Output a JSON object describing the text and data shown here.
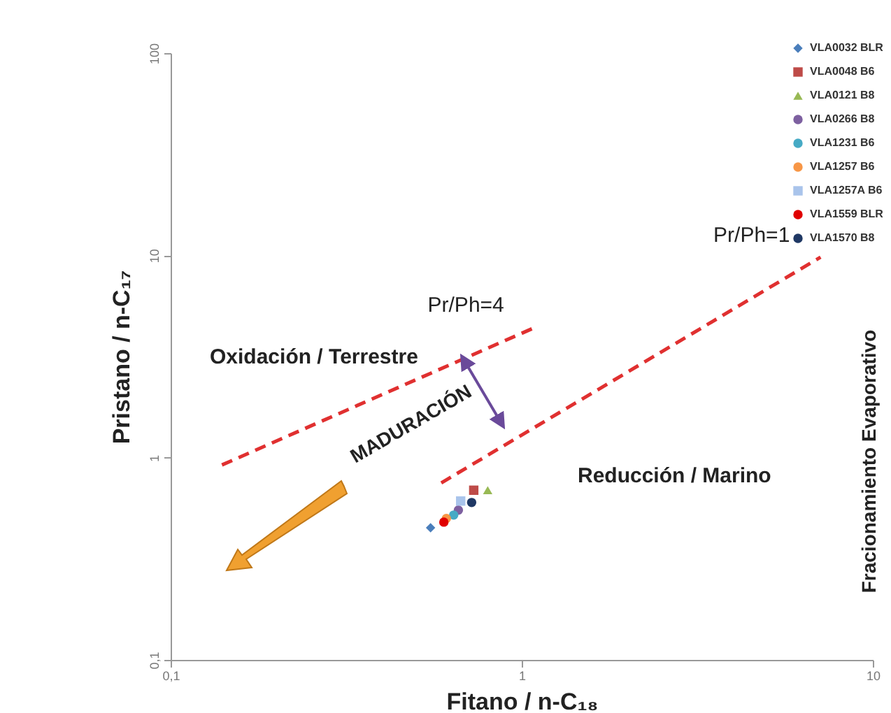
{
  "chart_data": {
    "type": "scatter",
    "xlabel": "Fitano / n-C₁₈",
    "ylabel": "Pristano / n-C₁₇",
    "log": "xy",
    "legend": "top right",
    "xlim": [
      0.1,
      10
    ],
    "ylim": [
      0.1,
      100
    ],
    "xticks": [
      {
        "value": 0.1,
        "label": "0,1"
      },
      1,
      10
    ],
    "yticks": [
      {
        "value": 0.1,
        "label": "0,1"
      },
      1,
      10,
      100
    ],
    "annotations": [
      "Oxidación / Terrestre",
      "MADURACIÓN",
      "Reducción / Marino",
      "Fracionamiento Evaporativo"
    ],
    "series": [
      {
        "name": "VLA0032 BLR",
        "color": "#4a7ebb",
        "marker": "diamond",
        "x": [
          0.55
        ],
        "values": [
          0.45
        ]
      },
      {
        "name": "VLA0048 B6",
        "color": "#be4b48",
        "marker": "square",
        "x": [
          0.73
        ],
        "values": [
          0.69
        ]
      },
      {
        "name": "VLA0121 B8",
        "color": "#98b954",
        "marker": "triangle",
        "x": [
          0.8
        ],
        "values": [
          0.69
        ]
      },
      {
        "name": "VLA0266 B8",
        "color": "#7d60a0",
        "marker": "circle",
        "x": [
          0.66
        ],
        "values": [
          0.55
        ]
      },
      {
        "name": "VLA1231 B6",
        "color": "#46aac5",
        "marker": "circle",
        "x": [
          0.64
        ],
        "values": [
          0.52
        ]
      },
      {
        "name": "VLA1257 B6",
        "color": "#f79646",
        "marker": "circle",
        "x": [
          0.61
        ],
        "values": [
          0.5
        ]
      },
      {
        "name": "VLA1257A B6",
        "color": "#a9c4eb",
        "marker": "square",
        "x": [
          0.67
        ],
        "values": [
          0.61
        ]
      },
      {
        "name": "VLA1559 BLR",
        "color": "#e00000",
        "marker": "circle",
        "x": [
          0.6
        ],
        "values": [
          0.48
        ]
      },
      {
        "name": "VLA1570 B8",
        "color": "#1f3864",
        "marker": "circle",
        "x": [
          0.72
        ],
        "values": [
          0.6
        ]
      },
      {
        "name": "Pr/Ph=4",
        "type": "line",
        "line_style": "dashed",
        "color": "#e03030",
        "x": [
          0.14,
          1.09
        ],
        "values": [
          0.92,
          4.4
        ]
      },
      {
        "name": "Pr/Ph=1",
        "type": "line",
        "line_style": "dashed",
        "color": "#e03030",
        "x": [
          0.59,
          7.1
        ],
        "values": [
          0.75,
          9.8
        ]
      }
    ]
  }
}
